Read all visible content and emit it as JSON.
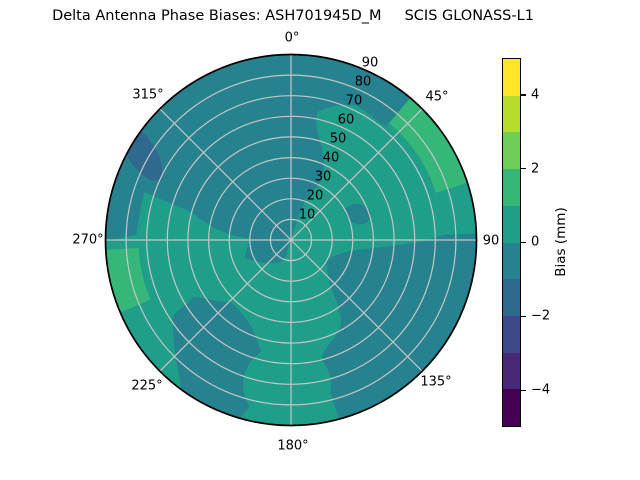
{
  "title": "Delta Antenna Phase Biases: ASH701945D_M     SCIS GLONASS-L1",
  "polar": {
    "theta_labels": [
      "0°",
      "45°",
      "90",
      "135°",
      "180°",
      "225°",
      "270°",
      "315°"
    ],
    "radial_labels": [
      "10",
      "20",
      "30",
      "40",
      "50",
      "60",
      "70",
      "80",
      "90"
    ]
  },
  "colorbar": {
    "label": "Bias (mm)",
    "tick_labels": [
      "4",
      "2",
      "0",
      "−2",
      "−4"
    ],
    "tick_values": [
      4,
      2,
      0,
      -2,
      -4
    ],
    "value_range": [
      -5,
      5
    ],
    "band_colors_top_to_bottom": [
      "#fde725",
      "#b5de2b",
      "#6ece58",
      "#35b779",
      "#1f9e89",
      "#26828e",
      "#31688e",
      "#3e4989",
      "#482878",
      "#440154"
    ]
  },
  "plot_colors": {
    "base": "#1f9e89",
    "band_neg1": "#26828e",
    "band_neg2": "#31688e",
    "band_pos1": "#35b779",
    "grid": "#c6c6c6",
    "outline": "#000000"
  },
  "chart_data": {
    "type": "heatmap",
    "projection": "polar",
    "title": "Delta Antenna Phase Biases: ASH701945D_M  SCIS GLONASS-L1",
    "antenna": "ASH701945D_M",
    "calibration": "SCIS",
    "signal": "GLONASS-L1",
    "theta_ticks_deg": [
      0,
      45,
      90,
      135,
      180,
      225,
      270,
      315
    ],
    "radial_ticks": [
      10,
      20,
      30,
      40,
      50,
      60,
      70,
      80,
      90
    ],
    "r_max": 90,
    "colorbar_label": "Bias (mm)",
    "colorbar_range_mm": [
      -5,
      5
    ],
    "contour_levels_mm": [
      -5,
      -4,
      -3,
      -2,
      -1,
      0,
      1,
      2,
      3,
      4,
      5
    ],
    "colormap": "viridis (10 discrete bands)",
    "regions": [
      {
        "bias_mm": "0 to 1",
        "theta_deg": "base/background over most of E, SW and S areas",
        "r": "0-90"
      },
      {
        "bias_mm": "-1 to 0",
        "theta_deg": "285-40 through north (N/NW mass incl. rim band 270-40)",
        "r": "0-90"
      },
      {
        "bias_mm": "-1 to 0",
        "theta_deg": "88-196 (SE/S region)",
        "r": "20-90"
      },
      {
        "bias_mm": "-1 to 0",
        "theta_deg": "196-240 (SW blob, rim contact 196-216)",
        "r": "42-90"
      },
      {
        "bias_mm": "-2 to -1",
        "theta_deg": "293-313 (blue patch)",
        "r": "62-90"
      },
      {
        "bias_mm": "1 to 2",
        "theta_deg": "40-72 (green rim strip near 45°)",
        "r": "72-90"
      },
      {
        "bias_mm": "1 to 2",
        "theta_deg": "247-267 (green rim strip below 270°)",
        "r": "74-90"
      },
      {
        "bias_mm": "0 to 1",
        "theta_deg": "162-196 (light blob at south over dark region)",
        "r": "52-90"
      }
    ]
  }
}
